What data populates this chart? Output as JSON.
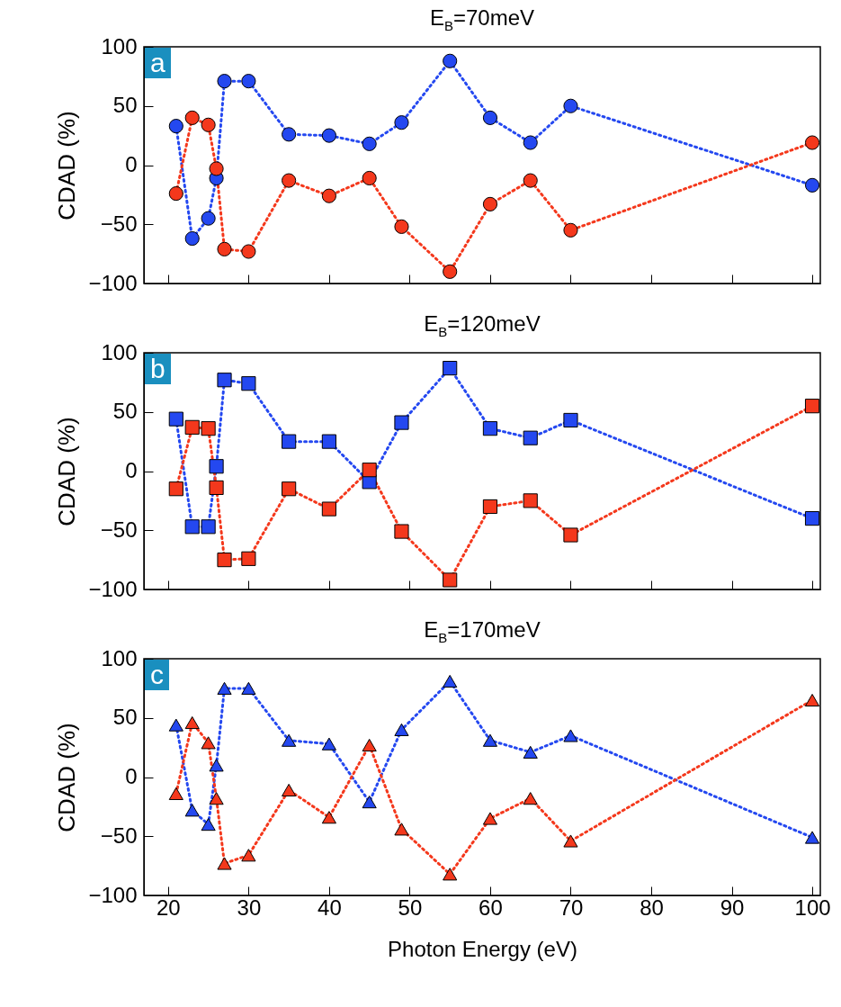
{
  "chart_data": [
    {
      "type": "line",
      "title": "E$_{B}$=70meV",
      "ylabel": "CDAD (%)",
      "annotations": [
        "a"
      ],
      "marker": "circle",
      "line_style": "dotted",
      "grid": false,
      "tick_labels": "y",
      "xlim": [
        17,
        101
      ],
      "ylim": [
        -100,
        100
      ],
      "xticks": [
        20,
        30,
        40,
        50,
        60,
        70,
        80,
        90,
        100
      ],
      "yticks": [
        -100,
        -50,
        0,
        50,
        100
      ],
      "x": [
        21,
        23,
        25,
        26,
        27,
        30,
        35,
        40,
        45,
        49,
        55,
        60,
        65,
        70,
        100
      ],
      "series": [
        {
          "color": "#2448f0",
          "values": [
            33,
            -62,
            -45,
            -11,
            71,
            71,
            26,
            25,
            18,
            36,
            88,
            40,
            19,
            50,
            -17
          ]
        },
        {
          "color": "#f4381c",
          "values": [
            -24,
            40,
            34,
            -3,
            -71,
            -73,
            -13,
            -26,
            -11,
            -52,
            -90,
            -33,
            -13,
            -55,
            19
          ]
        }
      ]
    },
    {
      "type": "line",
      "title": "E$_{B}$=120meV",
      "ylabel": "CDAD (%)",
      "annotations": [
        "b"
      ],
      "marker": "square",
      "line_style": "dotted",
      "grid": false,
      "tick_labels": "y",
      "xlim": [
        17,
        101
      ],
      "ylim": [
        -100,
        100
      ],
      "xticks": [
        20,
        30,
        40,
        50,
        60,
        70,
        80,
        90,
        100
      ],
      "yticks": [
        -100,
        -50,
        0,
        50,
        100
      ],
      "x": [
        21,
        23,
        25,
        26,
        27,
        30,
        35,
        40,
        45,
        49,
        55,
        60,
        65,
        70,
        100
      ],
      "series": [
        {
          "color": "#2448f0",
          "values": [
            44,
            -47,
            -47,
            4,
            77,
            74,
            25,
            25,
            -9,
            41,
            87,
            36,
            28,
            43,
            -40
          ]
        },
        {
          "color": "#f4381c",
          "values": [
            -15,
            37,
            36,
            -14,
            -75,
            -74,
            -15,
            -32,
            1,
            -51,
            -92,
            -30,
            -25,
            -54,
            55
          ]
        }
      ]
    },
    {
      "type": "line",
      "title": "E$_{B}$=170meV",
      "xlabel": "Photon Energy (eV)",
      "ylabel": "CDAD (%)",
      "annotations": [
        "c"
      ],
      "marker": "triangle",
      "line_style": "dotted",
      "grid": false,
      "xlim": [
        17,
        101
      ],
      "ylim": [
        -100,
        100
      ],
      "xticks": [
        20,
        30,
        40,
        50,
        60,
        70,
        80,
        90,
        100
      ],
      "yticks": [
        -100,
        -50,
        0,
        50,
        100
      ],
      "x": [
        21,
        23,
        25,
        26,
        27,
        30,
        35,
        40,
        45,
        49,
        55,
        60,
        65,
        70,
        100
      ],
      "series": [
        {
          "color": "#2448f0",
          "values": [
            44,
            -28,
            -40,
            10,
            75,
            75,
            31,
            28,
            -21,
            40,
            81,
            31,
            21,
            35,
            -51
          ]
        },
        {
          "color": "#f4381c",
          "values": [
            -14,
            46,
            29,
            -18,
            -73,
            -66,
            -11,
            -34,
            27,
            -44,
            -82,
            -35,
            -18,
            -54,
            65
          ]
        }
      ]
    }
  ]
}
